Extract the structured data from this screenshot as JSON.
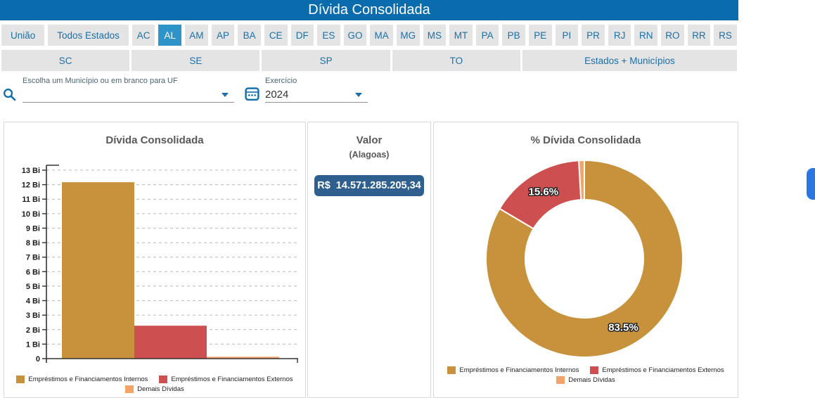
{
  "header": {
    "title": "Dívida Consolidada"
  },
  "nav": {
    "row1": [
      "União",
      "Todos Estados",
      "AC",
      "AL",
      "AM",
      "AP",
      "BA",
      "CE",
      "DF",
      "ES",
      "GO",
      "MA",
      "MG",
      "MS",
      "MT",
      "PA",
      "PB",
      "PE",
      "PI",
      "PR",
      "RJ",
      "RN",
      "RO",
      "RR",
      "RS"
    ],
    "row1_selected": "AL",
    "row2": [
      "SC",
      "SE",
      "SP",
      "TO",
      "Estados + Municípios"
    ]
  },
  "filters": {
    "municipio": {
      "label": "Escolha um Município ou em branco para UF",
      "value": ""
    },
    "exercicio": {
      "label": "Exercício",
      "value": "2024"
    }
  },
  "valor_panel": {
    "title": "Valor",
    "subtitle": "(Alagoas)",
    "value": "R$ 14.571.285.205,34"
  },
  "chart_data": [
    {
      "type": "bar",
      "title": "Dívida Consolidada",
      "categories": [
        "Empréstimos e Financiamentos Internos",
        "Empréstimos e Financiamentos Externos",
        "Demais Dívidas"
      ],
      "values": [
        12.17,
        2.27,
        0.13
      ],
      "unit": "Bi",
      "ylim": [
        0,
        13
      ],
      "ytick_step": 1,
      "grid": "dashed-horizontal",
      "legend_position": "bottom",
      "colors": [
        "#c8923c",
        "#cd4f4f",
        "#f5a469"
      ]
    },
    {
      "type": "donut",
      "title": "% Dívida Consolidada",
      "labels": [
        "Empréstimos e Financiamentos Internos",
        "Empréstimos e Financiamentos Externos",
        "Demais Dívidas"
      ],
      "values_pct": [
        83.5,
        15.6,
        0.9
      ],
      "slice_labels": [
        "83.5%",
        "15.6%",
        ""
      ],
      "legend_position": "bottom",
      "colors": [
        "#c8923c",
        "#cd4f4f",
        "#f5a469"
      ]
    }
  ],
  "colors": {
    "header_bg": "#0a6bad",
    "nav_button_bg": "#e4e4e4",
    "nav_button_text": "#1b6fa8",
    "nav_selected_bg": "#2e93c8",
    "accent_blue": "#0e6dad",
    "value_badge_bg": "#2e5f8e",
    "axis": "#333333",
    "grid": "#b8b8b8",
    "float_button": "#2b76e5"
  }
}
